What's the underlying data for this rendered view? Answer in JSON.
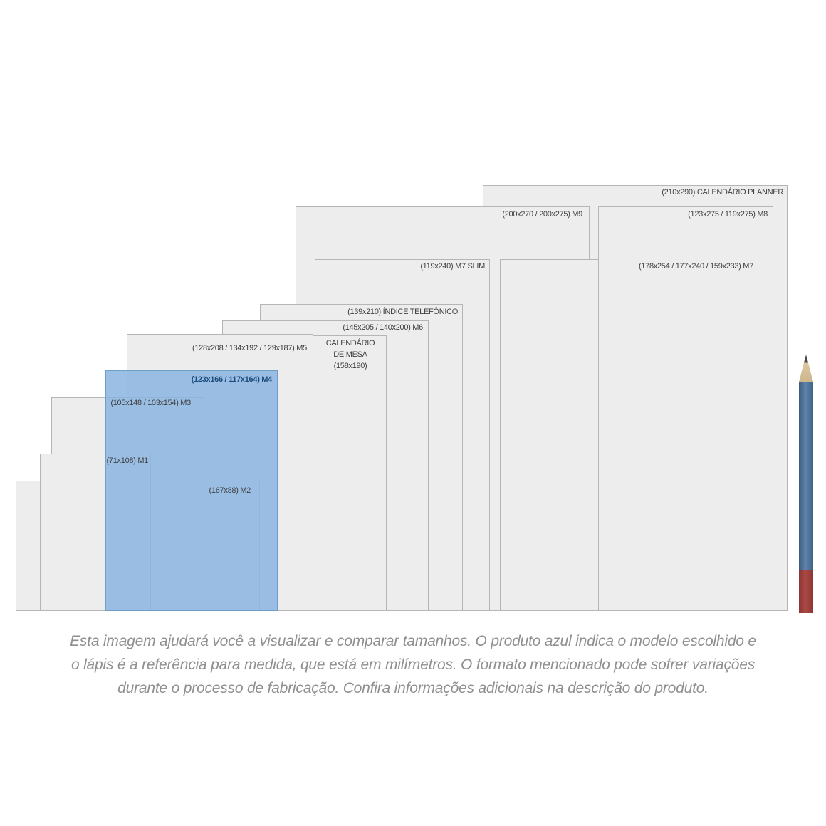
{
  "sizes": {
    "planner": {
      "label": "(210x290) CALENDÁRIO PLANNER"
    },
    "m9": {
      "label": "(200x270 / 200x275) M9"
    },
    "m8": {
      "label": "(123x275 / 119x275) M8"
    },
    "m7": {
      "label": "(178x254 / 177x240 / 159x233) M7"
    },
    "m7_slim": {
      "label": "(119x240) M7 SLIM"
    },
    "indice_telefonico": {
      "label": "(139x210) ÍNDICE TELEFÔNICO"
    },
    "m6": {
      "label": "(145x205 / 140x200) M6"
    },
    "calendario_de_mesa": {
      "line1": "CALENDÁRIO",
      "line2": "DE MESA",
      "line3": "(158x190)"
    },
    "m5": {
      "label": "(128x208 / 134x192 / 129x187) M5"
    },
    "m4": {
      "label": "(123x166 / 117x164) M4",
      "highlighted": true
    },
    "m3": {
      "label": "(105x148 / 103x154) M3"
    },
    "m2": {
      "label": "(167x88) M2"
    },
    "m1": {
      "label": "(71x108) M1"
    }
  },
  "colors": {
    "rect_fill": "#ededed",
    "rect_border": "#b5b5b5",
    "highlight_fill": "#a3c7e8",
    "highlight_border": "#6f9ec9",
    "highlight_text": "#1c4d7d",
    "label_text": "#3f3f3f",
    "caption_text": "#8f8f8f",
    "pencil_body": "#4e6f94",
    "pencil_end_cap": "#9c3a38",
    "pencil_wood": "#cdb68e",
    "pencil_lead": "#4a4a4a"
  },
  "caption": {
    "line1": "Esta imagem ajudará você a visualizar e comparar tamanhos. O produto azul indica o modelo escolhido e",
    "line2": "o lápis é a referência para medida, que está em milímetros. O formato mencionado pode sofrer variações",
    "line3": "durante o processo de fabricação. Confira informações adicionais na descrição do produto."
  }
}
